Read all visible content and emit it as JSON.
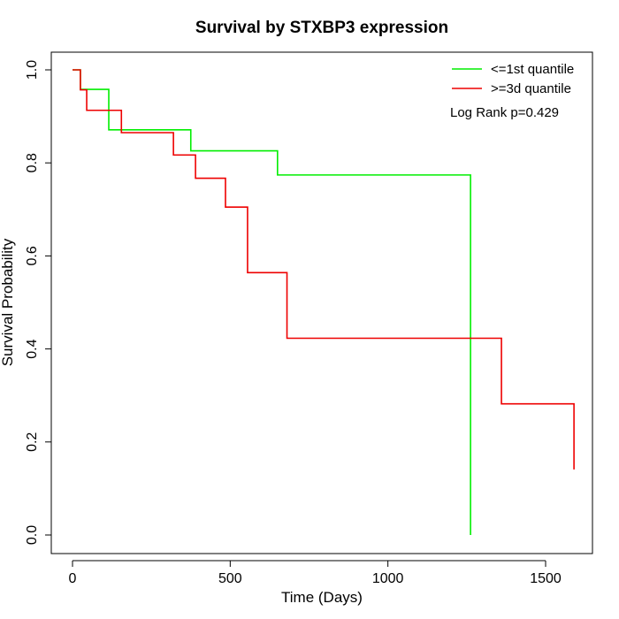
{
  "chart_data": {
    "type": "line",
    "title": "Survival by STXBP3 expression",
    "xlabel": "Time (Days)",
    "ylabel": "Survival Probability",
    "xlim": [
      0,
      1650
    ],
    "ylim": [
      0,
      1.0
    ],
    "xticks": [
      0,
      500,
      1000,
      1500
    ],
    "xtick_labels": [
      "0",
      "500",
      "1000",
      "1500"
    ],
    "yticks": [
      0.0,
      0.2,
      0.4,
      0.6,
      0.8,
      1.0
    ],
    "ytick_labels": [
      "0.0",
      "0.2",
      "0.4",
      "0.6",
      "0.8",
      "1.0"
    ],
    "grid": false,
    "legend_position": "top-right",
    "annotation": "Log Rank p=0.429",
    "series": [
      {
        "name": "<=1st quantile",
        "color": "#00ee00",
        "step": "post",
        "x": [
          0,
          25,
          105,
          115,
          350,
          375,
          650,
          1262,
          1262
        ],
        "y": [
          1.0,
          0.958,
          0.958,
          0.871,
          0.871,
          0.826,
          0.774,
          0.645,
          0.0
        ]
      },
      {
        "name": ">=3d quantile",
        "color": "#ee0000",
        "step": "post",
        "x": [
          0,
          25,
          45,
          135,
          155,
          320,
          390,
          485,
          555,
          680,
          1360,
          1590
        ],
        "y": [
          1.0,
          0.957,
          0.913,
          0.913,
          0.865,
          0.817,
          0.767,
          0.705,
          0.564,
          0.423,
          0.282,
          0.141
        ]
      }
    ],
    "series_end_x": [
      1262,
      1590
    ]
  }
}
